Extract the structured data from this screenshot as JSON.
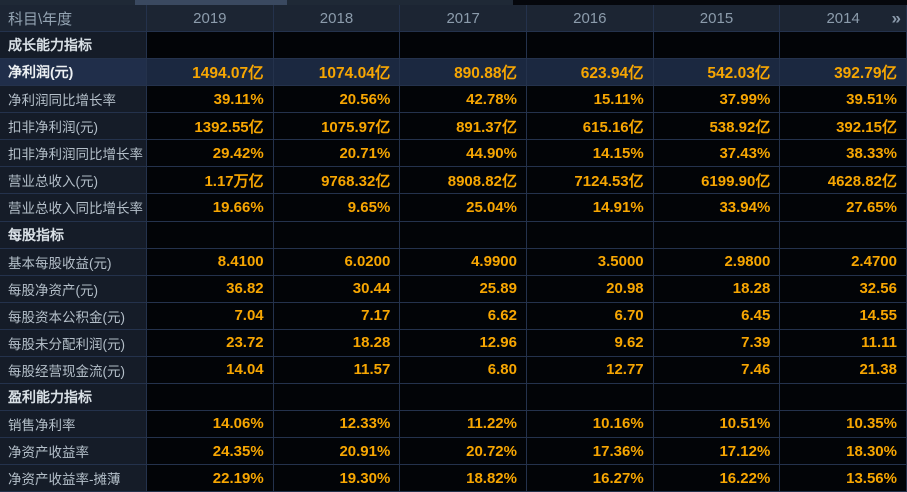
{
  "table": {
    "corner_header": "科目\\年度",
    "years": [
      "2019",
      "2018",
      "2017",
      "2016",
      "2015",
      "2014"
    ],
    "more_label": "»",
    "rows": [
      {
        "type": "section",
        "label": "成长能力指标",
        "values": [
          "",
          "",
          "",
          "",
          "",
          ""
        ]
      },
      {
        "type": "data",
        "highlight": true,
        "label": "净利润(元)",
        "values": [
          "1494.07亿",
          "1074.04亿",
          "890.88亿",
          "623.94亿",
          "542.03亿",
          "392.79亿"
        ]
      },
      {
        "type": "data",
        "label": "净利润同比增长率",
        "values": [
          "39.11%",
          "20.56%",
          "42.78%",
          "15.11%",
          "37.99%",
          "39.51%"
        ]
      },
      {
        "type": "data",
        "label": "扣非净利润(元)",
        "values": [
          "1392.55亿",
          "1075.97亿",
          "891.37亿",
          "615.16亿",
          "538.92亿",
          "392.15亿"
        ]
      },
      {
        "type": "data",
        "label": "扣非净利润同比增长率",
        "values": [
          "29.42%",
          "20.71%",
          "44.90%",
          "14.15%",
          "37.43%",
          "38.33%"
        ]
      },
      {
        "type": "data",
        "label": "营业总收入(元)",
        "values": [
          "1.17万亿",
          "9768.32亿",
          "8908.82亿",
          "7124.53亿",
          "6199.90亿",
          "4628.82亿"
        ]
      },
      {
        "type": "data",
        "label": "营业总收入同比增长率",
        "values": [
          "19.66%",
          "9.65%",
          "25.04%",
          "14.91%",
          "33.94%",
          "27.65%"
        ]
      },
      {
        "type": "section",
        "label": "每股指标",
        "values": [
          "",
          "",
          "",
          "",
          "",
          ""
        ]
      },
      {
        "type": "data",
        "label": "基本每股收益(元)",
        "values": [
          "8.4100",
          "6.0200",
          "4.9900",
          "3.5000",
          "2.9800",
          "2.4700"
        ]
      },
      {
        "type": "data",
        "label": "每股净资产(元)",
        "values": [
          "36.82",
          "30.44",
          "25.89",
          "20.98",
          "18.28",
          "32.56"
        ]
      },
      {
        "type": "data",
        "label": "每股资本公积金(元)",
        "values": [
          "7.04",
          "7.17",
          "6.62",
          "6.70",
          "6.45",
          "14.55"
        ]
      },
      {
        "type": "data",
        "label": "每股未分配利润(元)",
        "values": [
          "23.72",
          "18.28",
          "12.96",
          "9.62",
          "7.39",
          "11.11"
        ]
      },
      {
        "type": "data",
        "label": "每股经营现金流(元)",
        "values": [
          "14.04",
          "11.57",
          "6.80",
          "12.77",
          "7.46",
          "21.38"
        ]
      },
      {
        "type": "section",
        "label": "盈利能力指标",
        "values": [
          "",
          "",
          "",
          "",
          "",
          ""
        ]
      },
      {
        "type": "data",
        "label": "销售净利率",
        "values": [
          "14.06%",
          "12.33%",
          "11.22%",
          "10.16%",
          "10.51%",
          "10.35%"
        ]
      },
      {
        "type": "data",
        "label": "净资产收益率",
        "values": [
          "24.35%",
          "20.91%",
          "20.72%",
          "17.36%",
          "17.12%",
          "18.30%"
        ]
      },
      {
        "type": "data",
        "label": "净资产收益率-摊薄",
        "values": [
          "22.19%",
          "19.30%",
          "18.82%",
          "16.27%",
          "16.22%",
          "13.56%"
        ]
      }
    ]
  },
  "colors": {
    "value_text": "#f7a602",
    "header_bg": "#1c2533",
    "label_cell_bg": "#151c28",
    "value_cell_bg": "#020407",
    "highlight_row_bg": "#1b2840",
    "border": "#24324c",
    "scrollbar_thumb": "#3a4960"
  }
}
